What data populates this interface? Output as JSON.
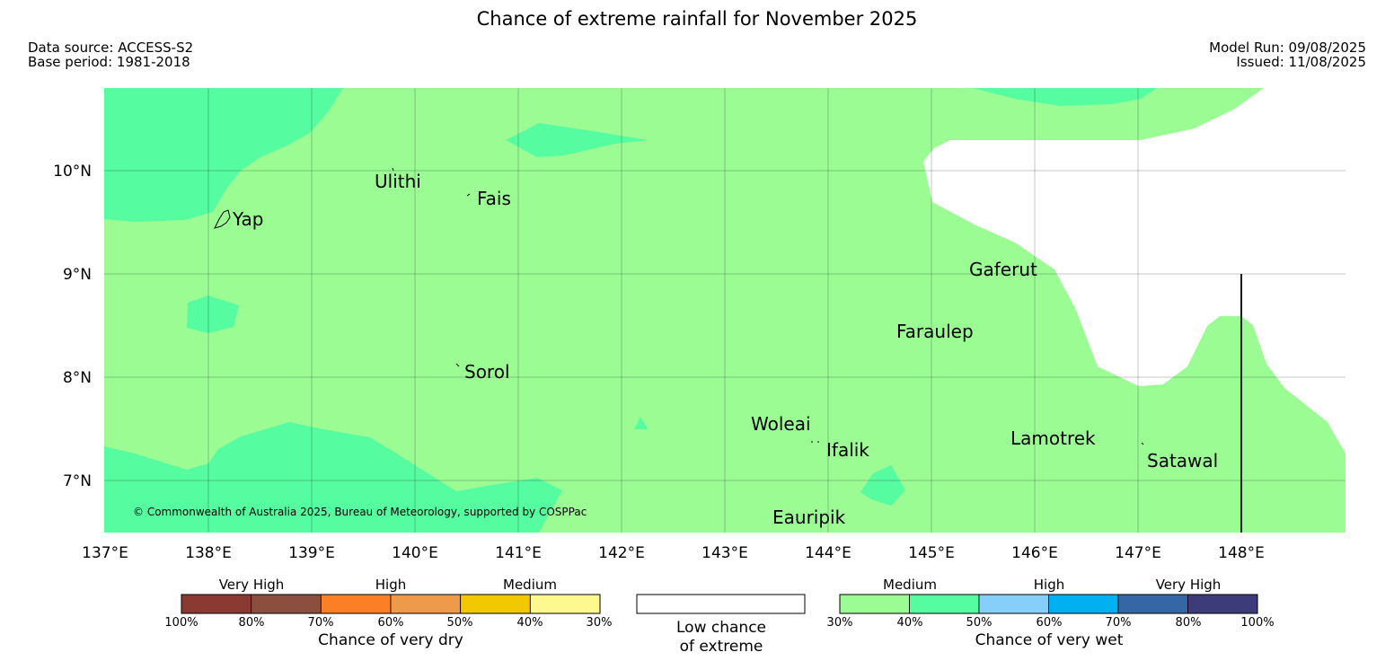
{
  "title": "Chance of extreme rainfall for November 2025",
  "meta": {
    "data_source": "Data source: ACCESS-S2",
    "base_period": "Base period: 1981-2018",
    "model_run": "Model Run: 09/08/2025",
    "issued": "Issued: 11/08/2025"
  },
  "map": {
    "lat_labels": [
      "10°N",
      "9°N",
      "8°N",
      "7°N"
    ],
    "lon_labels": [
      "137°E",
      "138°E",
      "139°E",
      "140°E",
      "141°E",
      "142°E",
      "143°E",
      "144°E",
      "145°E",
      "146°E",
      "147°E",
      "148°E"
    ],
    "places": {
      "ulithi": "Ulithi",
      "fais": "Fais",
      "yap": "Yap",
      "gaferut": "Gaferut",
      "faraulep": "Faraulep",
      "sorol": "Sorol",
      "woleai": "Woleai",
      "ifalik": "Ifalik",
      "lamotrek": "Lamotrek",
      "satawal": "Satawal",
      "eauripik": "Eauripik"
    },
    "copyright": "© Commonwealth of Australia 2025, Bureau of Meteorology, supported by COSPPac",
    "colors": {
      "medium_wet": "#9cfc94",
      "high_wet_40_50": "#56fca0",
      "low_chance": "#ffffff"
    }
  },
  "legend": {
    "dry": {
      "groups": [
        "Very High",
        "High",
        "Medium"
      ],
      "ticks": [
        "100%",
        "80%",
        "70%",
        "60%",
        "50%",
        "40%",
        "30%"
      ],
      "colors": [
        "#8b3a32",
        "#8c4f3f",
        "#fc7f26",
        "#ef9a4a",
        "#f2c800",
        "#fef98f"
      ],
      "title": "Chance of very dry"
    },
    "low": {
      "line1": "Low chance",
      "line2": "of extreme"
    },
    "wet": {
      "groups": [
        "Medium",
        "High",
        "Very High"
      ],
      "ticks": [
        "30%",
        "40%",
        "50%",
        "60%",
        "70%",
        "80%",
        "100%"
      ],
      "colors": [
        "#9cfc94",
        "#56fca0",
        "#86cffa",
        "#00b0f0",
        "#3567a6",
        "#3d3b7a"
      ],
      "title": "Chance of very wet"
    }
  }
}
